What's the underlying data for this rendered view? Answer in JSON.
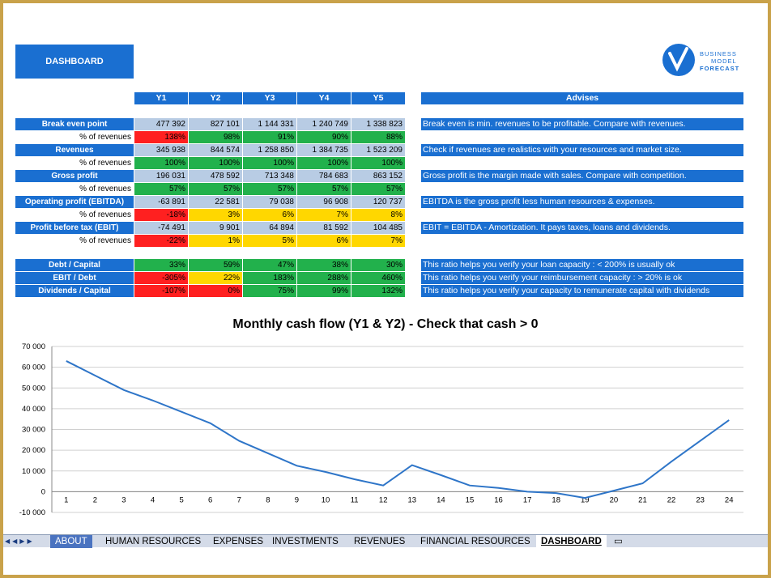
{
  "dashboard_label": "DASHBOARD",
  "logo": {
    "line1": "BUSINESS",
    "line2": "MODEL",
    "line3": "FORECAST"
  },
  "years": [
    "Y1",
    "Y2",
    "Y3",
    "Y4",
    "Y5"
  ],
  "advises_header": "Advises",
  "percent_label": "% of revenues",
  "rows": [
    {
      "label": "Break even point",
      "values": [
        "477 392",
        "827 101",
        "1 144 331",
        "1 240 749",
        "1 338 823"
      ],
      "pct": [
        "138%",
        "98%",
        "91%",
        "90%",
        "88%"
      ],
      "pct_colors": [
        "rd",
        "gr",
        "gr",
        "gr",
        "gr"
      ],
      "advice": "Break even is min. revenues to be profitable. Compare with revenues."
    },
    {
      "label": "Revenues",
      "values": [
        "345 938",
        "844 574",
        "1 258 850",
        "1 384 735",
        "1 523 209"
      ],
      "pct": [
        "100%",
        "100%",
        "100%",
        "100%",
        "100%"
      ],
      "pct_colors": [
        "gr",
        "gr",
        "gr",
        "gr",
        "gr"
      ],
      "advice": "Check if revenues are realistics with your resources and market size."
    },
    {
      "label": "Gross profit",
      "values": [
        "196 031",
        "478 592",
        "713 348",
        "784 683",
        "863 152"
      ],
      "pct": [
        "57%",
        "57%",
        "57%",
        "57%",
        "57%"
      ],
      "pct_colors": [
        "gr",
        "gr",
        "gr",
        "gr",
        "gr"
      ],
      "advice": "Gross profit is the margin made with sales. Compare with competition."
    },
    {
      "label": "Operating profit (EBITDA)",
      "values": [
        "-63 891",
        "22 581",
        "79 038",
        "96 908",
        "120 737"
      ],
      "pct": [
        "-18%",
        "3%",
        "6%",
        "7%",
        "8%"
      ],
      "pct_colors": [
        "rd",
        "yl",
        "yl",
        "yl",
        "yl"
      ],
      "advice": "EBITDA is the gross profit less human resources & expenses."
    },
    {
      "label": "Profit before tax (EBIT)",
      "values": [
        "-74 491",
        "9 901",
        "64 894",
        "81 592",
        "104 485"
      ],
      "pct": [
        "-22%",
        "1%",
        "5%",
        "6%",
        "7%"
      ],
      "pct_colors": [
        "rd",
        "yl",
        "yl",
        "yl",
        "yl"
      ],
      "advice": "EBIT = EBITDA - Amortization. It pays taxes, loans and dividends."
    }
  ],
  "ratios": [
    {
      "label": "Debt / Capital",
      "values": [
        "33%",
        "59%",
        "47%",
        "38%",
        "30%"
      ],
      "colors": [
        "gr",
        "gr",
        "gr",
        "gr",
        "gr"
      ],
      "advice": "This ratio helps you verify your loan capacity : < 200% is usually ok"
    },
    {
      "label": "EBIT / Debt",
      "values": [
        "-305%",
        "22%",
        "183%",
        "288%",
        "460%"
      ],
      "colors": [
        "rd",
        "yl",
        "gr",
        "gr",
        "gr"
      ],
      "advice": "This ratio helps you verify your reimbursement capacity : > 20% is ok"
    },
    {
      "label": "Dividends / Capital",
      "values": [
        "-107%",
        "0%",
        "75%",
        "99%",
        "132%"
      ],
      "colors": [
        "rd",
        "rd",
        "gr",
        "gr",
        "gr"
      ],
      "advice": "This ratio helps you verify your capacity to remunerate capital with dividends"
    }
  ],
  "chart_title": "Monthly cash flow (Y1 & Y2) - Check that cash > 0",
  "chart_data": {
    "type": "line",
    "title": "Monthly cash flow (Y1 & Y2) - Check that cash > 0",
    "x": [
      1,
      2,
      3,
      4,
      5,
      6,
      7,
      8,
      9,
      10,
      11,
      12,
      13,
      14,
      15,
      16,
      17,
      18,
      19,
      20,
      21,
      22,
      23,
      24
    ],
    "series": [
      {
        "values": [
          63000,
          56000,
          49000,
          44000,
          38500,
          33000,
          24500,
          18500,
          12500,
          9500,
          6000,
          3000,
          12800,
          8000,
          3000,
          1800,
          0,
          -700,
          -3000,
          500,
          4000,
          14500,
          24500,
          34500
        ]
      }
    ],
    "ylim": [
      -10000,
      70000
    ],
    "yticks": [
      -10000,
      0,
      10000,
      20000,
      30000,
      40000,
      50000,
      60000,
      70000
    ],
    "ytick_labels": [
      "-10 000",
      "0",
      "10 000",
      "20 000",
      "30 000",
      "40 000",
      "50 000",
      "60 000",
      "70 000"
    ],
    "grid": true,
    "line_color": "#2e75c8"
  },
  "tabs": [
    "ABOUT",
    "HUMAN RESOURCES",
    "EXPENSES",
    "INVESTMENTS",
    "REVENUES",
    "FINANCIAL RESOURCES",
    "DASHBOARD"
  ],
  "active_tab": "DASHBOARD"
}
